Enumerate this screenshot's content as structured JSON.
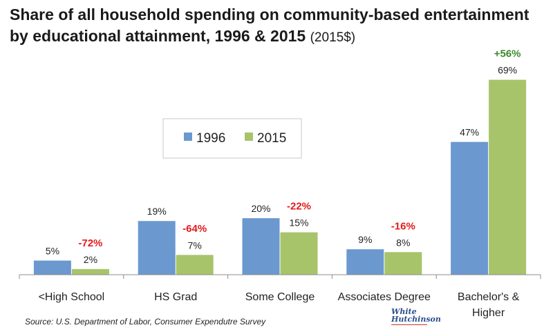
{
  "title": {
    "main_line1": "Share of all household spending on community-based entertainment",
    "main_line2": "by educational attainment, 1996 & 2015",
    "suffix": "(2015$)"
  },
  "source": "Source: U.S. Department of Labor, Consumer Expendutre Survey",
  "logo": {
    "line1": "White",
    "line2": "Hutchinson"
  },
  "colors": {
    "series_1996": "#6b98cf",
    "series_2015": "#a7c46b",
    "change_negative": "#e41a1c",
    "change_positive": "#3b8a2e"
  },
  "chart_data": {
    "type": "bar",
    "categories": [
      "<High School",
      "HS Grad",
      "Some College",
      "Associates Degree",
      "Bachelor's & Higher"
    ],
    "category_lines": [
      [
        "<High School"
      ],
      [
        "HS Grad"
      ],
      [
        "Some College"
      ],
      [
        "Associates Degree"
      ],
      [
        "Bachelor's &",
        "Higher"
      ]
    ],
    "series": [
      {
        "name": "1996",
        "values": [
          5,
          19,
          20,
          9,
          47
        ],
        "labels": [
          "5%",
          "19%",
          "20%",
          "9%",
          "47%"
        ],
        "color": "#6b98cf"
      },
      {
        "name": "2015",
        "values": [
          2,
          7,
          15,
          8,
          69
        ],
        "labels": [
          "2%",
          "7%",
          "15%",
          "8%",
          "69%"
        ],
        "color": "#a7c46b"
      }
    ],
    "changes": [
      "-72%",
      "-64%",
      "-22%",
      "-16%",
      "+56%"
    ],
    "legend": "top-center",
    "grid": false,
    "ylim": [
      0,
      75
    ]
  }
}
